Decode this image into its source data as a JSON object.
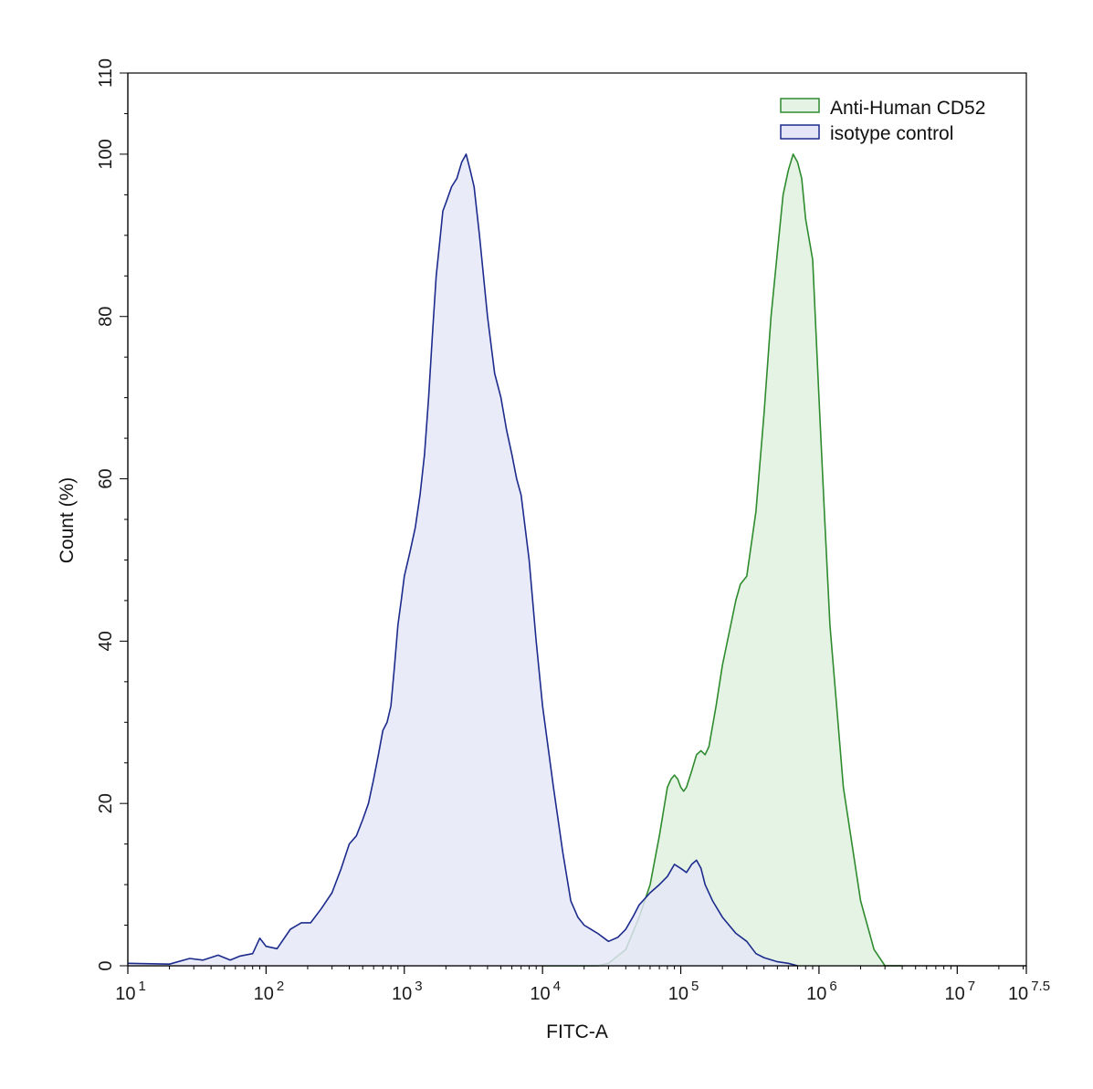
{
  "chart_data": {
    "type": "area",
    "title": "",
    "xlabel": "FITC-A",
    "ylabel": "Count  (%)",
    "x_scale": "log10",
    "xlim": [
      10,
      31622776
    ],
    "ylim": [
      0,
      110
    ],
    "x_ticks": [
      {
        "value": 10,
        "base": "10",
        "exp": "1"
      },
      {
        "value": 100,
        "base": "10",
        "exp": "2"
      },
      {
        "value": 1000,
        "base": "10",
        "exp": "3"
      },
      {
        "value": 10000,
        "base": "10",
        "exp": "4"
      },
      {
        "value": 100000,
        "base": "10",
        "exp": "5"
      },
      {
        "value": 1000000,
        "base": "10",
        "exp": "6"
      },
      {
        "value": 10000000,
        "base": "10",
        "exp": "7"
      },
      {
        "value": 31622776,
        "base": "10",
        "exp": "7.5"
      }
    ],
    "y_ticks": [
      {
        "value": 0,
        "label": "0"
      },
      {
        "value": 20,
        "label": "20"
      },
      {
        "value": 40,
        "label": "40"
      },
      {
        "value": 60,
        "label": "60"
      },
      {
        "value": 80,
        "label": "80"
      },
      {
        "value": 100,
        "label": "100"
      },
      {
        "value": 110,
        "label": "110"
      }
    ],
    "grid": false,
    "legend_position": "top-right",
    "series": [
      {
        "name": "Anti-Human CD52",
        "line_color": "#2e8b2e",
        "fill_color": "#e4f3e4",
        "x": [
          10000,
          25000,
          30000,
          40000,
          50000,
          60000,
          70000,
          80000,
          85000,
          90000,
          95000,
          100000,
          105000,
          110000,
          120000,
          130000,
          140000,
          150000,
          160000,
          180000,
          200000,
          230000,
          250000,
          270000,
          300000,
          350000,
          400000,
          450000,
          500000,
          550000,
          600000,
          650000,
          700000,
          750000,
          800000,
          900000,
          1000000,
          1100000,
          1200000,
          1500000,
          2000000,
          2500000,
          3000000,
          4000000
        ],
        "values": [
          0,
          0,
          0.3,
          2,
          6,
          10,
          16,
          22,
          23,
          23.5,
          23,
          22,
          21.5,
          22,
          24,
          26,
          26.5,
          26,
          27,
          32,
          37,
          42,
          45,
          47,
          48,
          56,
          68,
          80,
          88,
          95,
          98,
          100,
          99,
          97,
          92,
          87,
          70,
          55,
          42,
          22,
          8,
          2,
          0,
          0
        ]
      },
      {
        "name": "isotype control",
        "line_color": "#1c2b8c",
        "fill_color": "#e4e6f8",
        "x": [
          10,
          20,
          28,
          35,
          45,
          55,
          65,
          80,
          90,
          100,
          120,
          150,
          180,
          210,
          250,
          300,
          350,
          400,
          450,
          500,
          550,
          600,
          650,
          700,
          750,
          800,
          850,
          900,
          950,
          1000,
          1100,
          1200,
          1300,
          1400,
          1500,
          1600,
          1700,
          1800,
          1900,
          2000,
          2200,
          2400,
          2600,
          2800,
          3000,
          3200,
          3500,
          4000,
          4500,
          5000,
          5500,
          6000,
          6500,
          7000,
          8000,
          9000,
          10000,
          12000,
          14000,
          16000,
          18000,
          20000,
          25000,
          30000,
          35000,
          40000,
          45000,
          50000,
          60000,
          70000,
          80000,
          90000,
          100000,
          110000,
          120000,
          130000,
          140000,
          150000,
          170000,
          200000,
          250000,
          300000,
          350000,
          400000,
          500000,
          600000,
          700000
        ],
        "values": [
          0.3,
          0.2,
          0.9,
          0.7,
          1.3,
          0.7,
          1.2,
          1.5,
          3.4,
          2.4,
          2.1,
          4.5,
          5.3,
          5.3,
          7.0,
          9.0,
          12,
          15,
          16,
          18,
          20,
          23,
          26,
          29,
          30,
          32,
          37,
          42,
          45,
          48,
          51,
          54,
          58,
          63,
          70,
          78,
          85,
          89,
          93,
          94,
          96,
          97,
          99,
          100,
          98,
          96,
          90,
          80,
          73,
          70,
          66,
          63,
          60,
          58,
          50,
          40,
          32,
          22,
          14,
          8,
          6,
          5,
          4,
          3,
          3.5,
          4.5,
          6,
          7.5,
          9,
          10,
          11,
          12.5,
          12,
          11.5,
          12.5,
          13,
          12,
          10,
          8,
          6,
          4,
          3,
          1.5,
          1,
          0.5,
          0.3,
          0
        ]
      }
    ]
  }
}
